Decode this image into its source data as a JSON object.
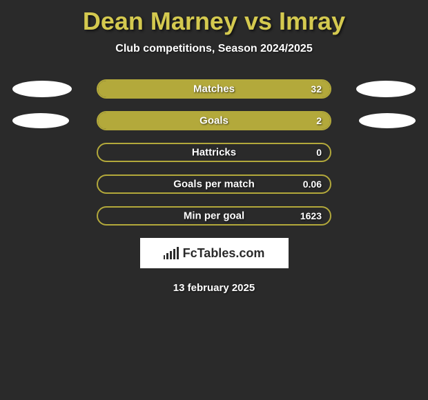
{
  "title": "Dean Marney vs Imray",
  "subtitle": "Club competitions, Season 2024/2025",
  "date": "13 february 2025",
  "logo_text": "FcTables.com",
  "colors": {
    "background": "#2a2a2a",
    "accent": "#b3a93b",
    "title": "#d4c94f",
    "text": "#ffffff",
    "ellipse": "#ffffff",
    "logo_bg": "#ffffff",
    "logo_fg": "#2a2a2a"
  },
  "rows": [
    {
      "label": "Matches",
      "value": "32",
      "fill_pct": 100,
      "ellipse_left": {
        "w": 86,
        "h": 24
      },
      "ellipse_right": {
        "w": 86,
        "h": 24
      }
    },
    {
      "label": "Goals",
      "value": "2",
      "fill_pct": 100,
      "ellipse_left": {
        "w": 82,
        "h": 22
      },
      "ellipse_right": {
        "w": 82,
        "h": 22
      }
    },
    {
      "label": "Hattricks",
      "value": "0",
      "fill_pct": 0,
      "ellipse_left": null,
      "ellipse_right": null
    },
    {
      "label": "Goals per match",
      "value": "0.06",
      "fill_pct": 0,
      "ellipse_left": null,
      "ellipse_right": null
    },
    {
      "label": "Min per goal",
      "value": "1623",
      "fill_pct": 0,
      "ellipse_left": null,
      "ellipse_right": null
    }
  ]
}
